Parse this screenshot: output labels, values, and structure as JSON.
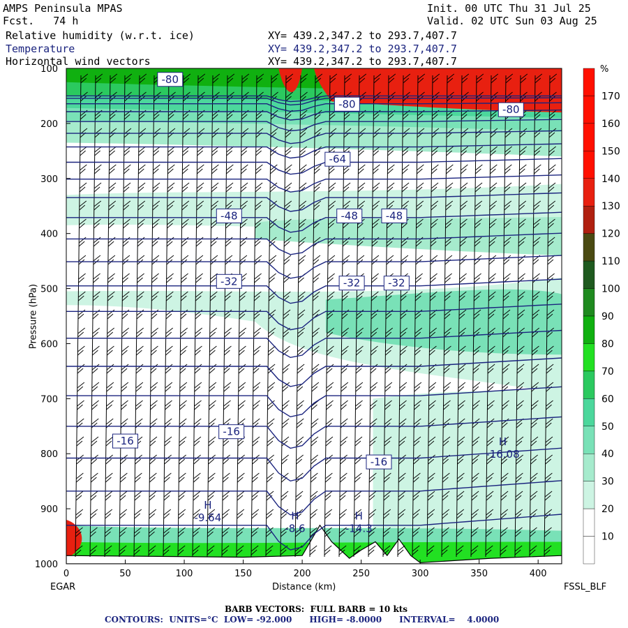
{
  "header": {
    "model": "AMPS Peninsula MPAS",
    "fcst": "Fcst.   74 h",
    "init": "Init. 00 UTC Thu 31 Jul 25",
    "valid": "Valid. 02 UTC Sun 03 Aug 25",
    "fields": [
      {
        "label": "Relative humidity (w.r.t. ice)",
        "xy": "XY= 439.2,347.2 to 293.7,407.7"
      },
      {
        "label": "Temperature",
        "xy": "XY= 439.2,347.2 to 293.7,407.7"
      },
      {
        "label": "Horizontal wind vectors",
        "xy": "XY= 439.2,347.2 to 293.7,407.7"
      }
    ]
  },
  "footer": {
    "barb_note": "BARB VECTORS:  FULL BARB = 10 kts",
    "contour_note": "CONTOURS:  UNITS=°C  LOW= -92.000      HIGH= -8.0000      INTERVAL=    4.0000"
  },
  "colors": {
    "temperature_contour": "#1a237e",
    "rh_scale": [
      "#ffffff",
      "#ffffff",
      "#cdf4e3",
      "#a6ebcd",
      "#79e1b7",
      "#4cd79c",
      "#2bc95f",
      "#22e022",
      "#10b010",
      "#1f8a1f",
      "#1f5a1f",
      "#4a4a12",
      "#b02010",
      "#e82010",
      "#ff1000"
    ]
  },
  "chart_data": {
    "type": "heatmap",
    "title": "",
    "xlabel": "Distance (km)",
    "ylabel": "Pressure (hPa)",
    "x_endpoints": {
      "left": "EGAR",
      "right": "FSSL_BLF"
    },
    "xlim": [
      0,
      420
    ],
    "ylim": [
      1000,
      100
    ],
    "x_ticks": [
      0,
      50,
      100,
      150,
      200,
      250,
      300,
      350,
      400
    ],
    "y_ticks": [
      100,
      200,
      300,
      400,
      500,
      600,
      700,
      800,
      900,
      1000
    ],
    "colorbar": {
      "unit": "%",
      "levels": [
        10,
        20,
        30,
        40,
        50,
        60,
        70,
        80,
        90,
        100,
        110,
        120,
        130,
        140,
        150,
        160,
        170
      ]
    },
    "temperature_contours": {
      "units": "°C",
      "low": -92.0,
      "high": -8.0,
      "interval": 4.0,
      "labels": [
        {
          "text": "-80",
          "x": 88,
          "p": 120
        },
        {
          "text": "-80",
          "x": 238,
          "p": 165
        },
        {
          "text": "-80",
          "x": 377,
          "p": 175
        },
        {
          "text": "-64",
          "x": 230,
          "p": 265
        },
        {
          "text": "-48",
          "x": 138,
          "p": 368
        },
        {
          "text": "-48",
          "x": 240,
          "p": 368
        },
        {
          "text": "-48",
          "x": 278,
          "p": 368
        },
        {
          "text": "-32",
          "x": 138,
          "p": 487
        },
        {
          "text": "-32",
          "x": 242,
          "p": 490
        },
        {
          "text": "-32",
          "x": 280,
          "p": 490
        },
        {
          "text": "-16",
          "x": 140,
          "p": 760
        },
        {
          "text": "-16",
          "x": 50,
          "p": 777
        },
        {
          "text": "-16",
          "x": 265,
          "p": 815
        }
      ],
      "highs": [
        {
          "marker": "H",
          "value": "-9.64",
          "x": 120,
          "p": 915
        },
        {
          "marker": "H",
          "value": "-8.6",
          "x": 194,
          "p": 935
        },
        {
          "marker": "H",
          "value": "-14.3",
          "x": 248,
          "p": 935
        },
        {
          "marker": "H",
          "value": "-16.08",
          "x": 370,
          "p": 800
        }
      ]
    }
  }
}
